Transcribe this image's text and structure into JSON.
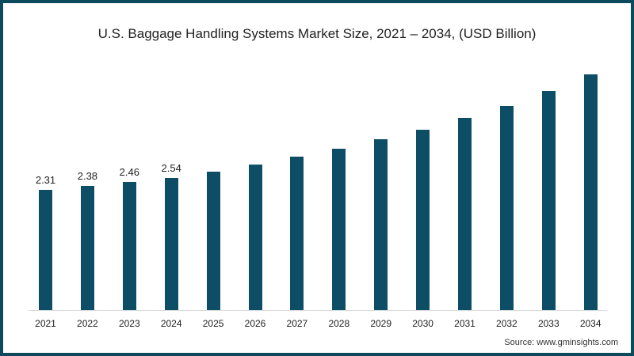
{
  "chart_data": {
    "type": "bar",
    "title": "U.S. Baggage Handling Systems Market Size, 2021 – 2034, (USD Billion)",
    "xlabel": "",
    "ylabel": "USD Billion",
    "categories": [
      "2021",
      "2022",
      "2023",
      "2024",
      "2025",
      "2026",
      "2027",
      "2028",
      "2029",
      "2030",
      "2031",
      "2032",
      "2033",
      "2034"
    ],
    "values": [
      2.31,
      2.38,
      2.46,
      2.54,
      2.66,
      2.8,
      2.95,
      3.1,
      3.28,
      3.46,
      3.69,
      3.92,
      4.21,
      4.53
    ],
    "data_labels": [
      "2.31",
      "2.38",
      "2.46",
      "2.54",
      "",
      "",
      "",
      "",
      "",
      "",
      "",
      "",
      "",
      ""
    ],
    "ylim": [
      0,
      4.6
    ],
    "grid": false,
    "legend": null,
    "bar_color": "#0d4e66"
  },
  "source": "Source: www.gminsights.com"
}
